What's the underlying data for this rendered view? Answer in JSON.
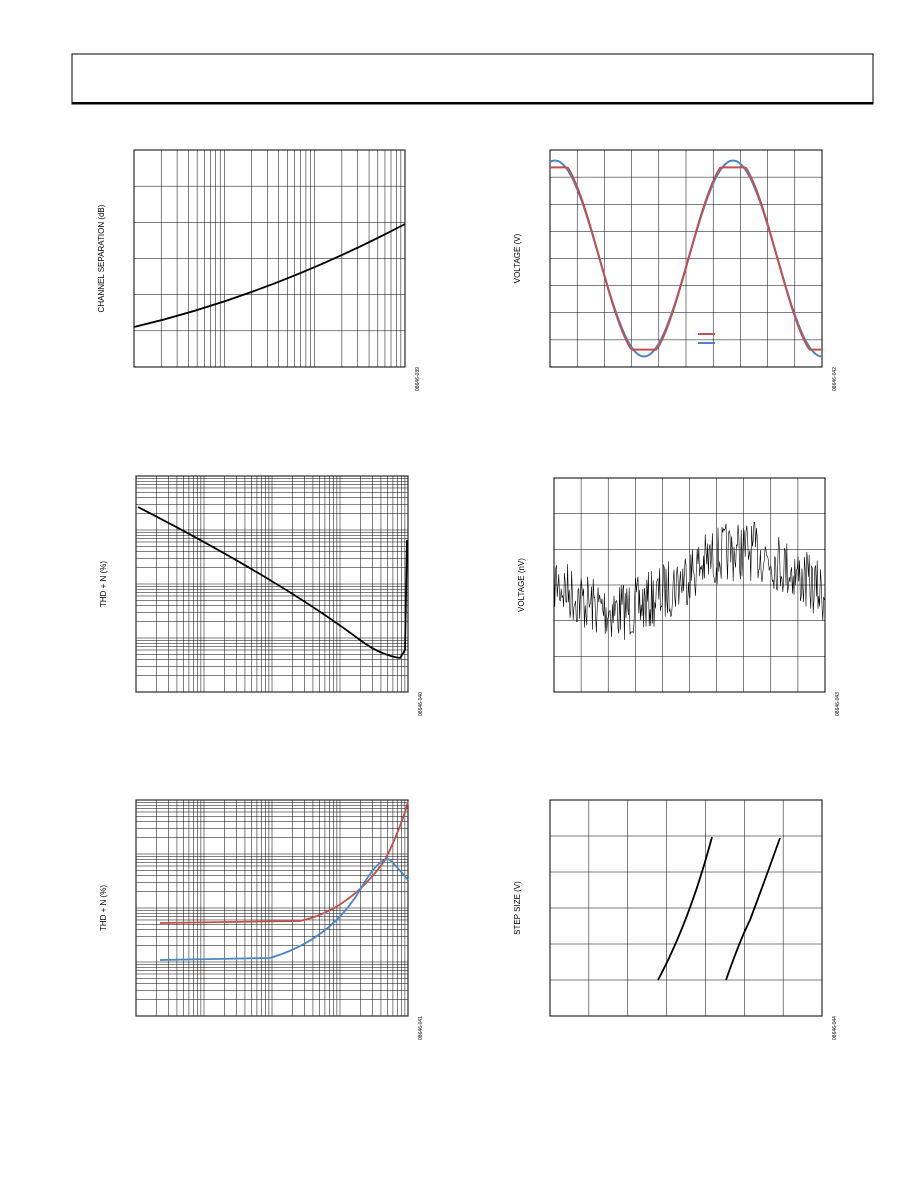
{
  "figures": [
    {
      "y_label": "CHANNEL SEPARATION (dB)",
      "code": "08646-039"
    },
    {
      "y_label": "VOLTAGE (V)",
      "code": "08646-042"
    },
    {
      "y_label": "THD + N (%)",
      "code": "08646-040"
    },
    {
      "y_label": "VOLTAGE (nV)",
      "code": "08646-043"
    },
    {
      "y_label": "THD + N (%)",
      "code": "08646-041"
    },
    {
      "y_label": "STEP SIZE (V)",
      "code": "08646-044"
    }
  ]
}
